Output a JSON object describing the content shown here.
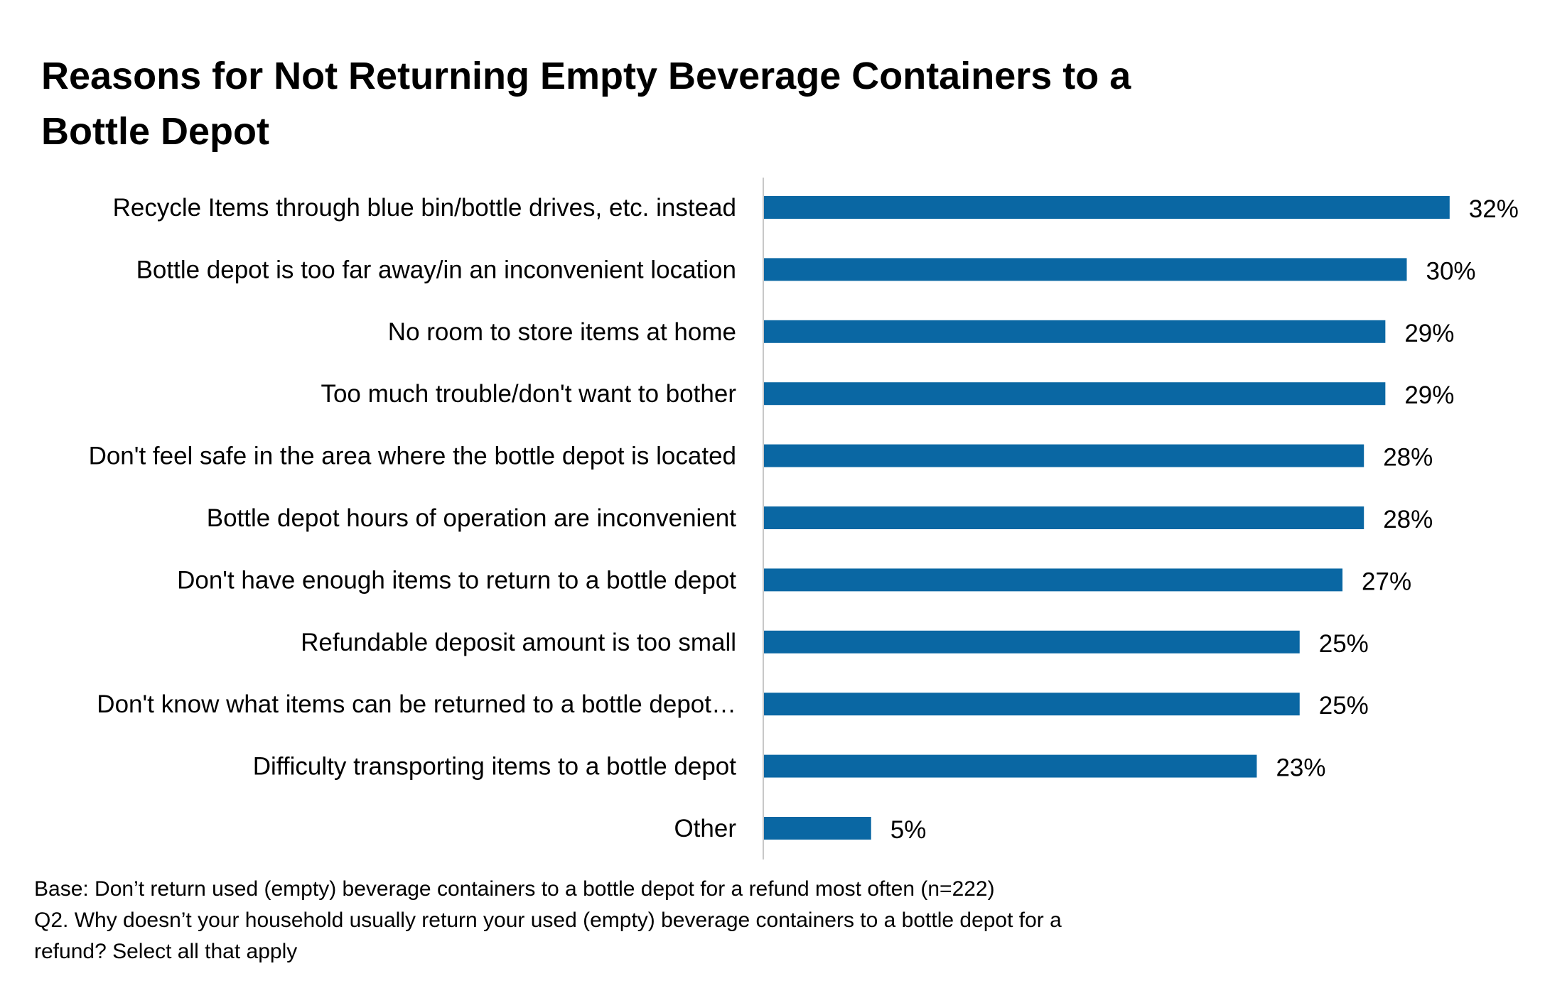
{
  "chart_data": {
    "type": "bar",
    "orientation": "horizontal",
    "title": "Reasons for Not Returning Empty Beverage Containers to a Bottle Depot",
    "categories": [
      "Recycle Items through blue bin/bottle drives, etc. instead",
      "Bottle depot is too far away/in an inconvenient location",
      "No room to store items at home",
      "Too much trouble/don't want to bother",
      "Don't feel safe in the area where the bottle depot is located",
      "Bottle depot hours of operation are inconvenient",
      "Don't have enough items to return to a bottle depot",
      "Refundable deposit amount is too small",
      "Don't know what items can be returned to a bottle depot…",
      "Difficulty transporting items to a bottle depot",
      "Other"
    ],
    "values": [
      32,
      30,
      29,
      29,
      28,
      28,
      27,
      25,
      25,
      23,
      5
    ],
    "value_labels": [
      "32%",
      "30%",
      "29%",
      "29%",
      "28%",
      "28%",
      "27%",
      "25%",
      "25%",
      "23%",
      "5%"
    ],
    "unit": "%",
    "bar_color": "#0a67a3",
    "axis_color": "#c8c8c8",
    "grid": false,
    "legend": "none"
  },
  "footnotes": {
    "base": "Base: Don’t return used (empty) beverage containers to a bottle depot for a refund most often (n=222)",
    "question_line1": "Q2. Why doesn’t your household usually return your used (empty) beverage containers to a bottle depot for a",
    "question_line2": "refund? Select all that apply"
  }
}
